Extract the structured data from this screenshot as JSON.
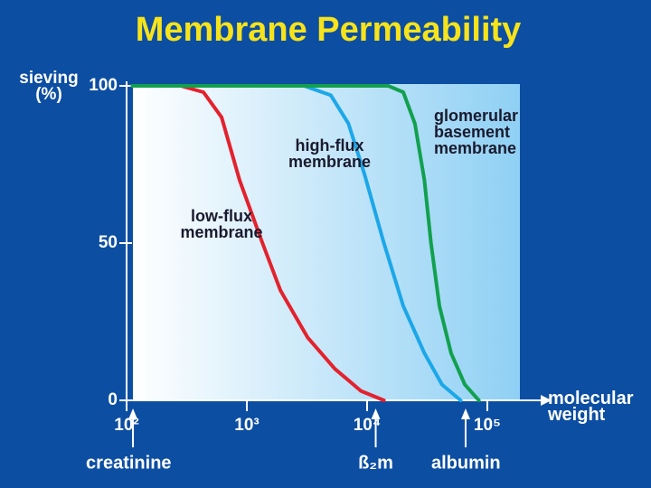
{
  "chart_data": {
    "type": "line",
    "title": "Membrane Permeability",
    "y_label": "sieving (%)",
    "x_label": "molecular weight",
    "log_x": true,
    "xlim": [
      100,
      200000
    ],
    "xticks": [
      {
        "value": 100,
        "label": "10²"
      },
      {
        "value": 1000,
        "label": "10³"
      },
      {
        "value": 10000,
        "label": "10⁴"
      },
      {
        "value": 100000,
        "label": "10⁵"
      }
    ],
    "ylim": [
      0,
      100
    ],
    "yticks": [
      0,
      50,
      100
    ],
    "series": [
      {
        "name": "low-flux membrane",
        "color": "#e3222e",
        "x": [
          112,
          282,
          436,
          617,
          871,
          1350,
          1900,
          3200,
          5400,
          8900,
          13800
        ],
        "values": [
          100,
          100,
          98,
          90,
          70,
          50,
          35,
          20,
          10,
          3,
          0
        ]
      },
      {
        "name": "high-flux membrane",
        "color": "#1ca7e8",
        "x": [
          112,
          3000,
          5000,
          7000,
          9500,
          13800,
          20000,
          30000,
          42000,
          60000
        ],
        "values": [
          100,
          100,
          97,
          88,
          72,
          50,
          30,
          15,
          5,
          0
        ]
      },
      {
        "name": "glomerular basement membrane",
        "color": "#12a04e",
        "x": [
          112,
          15000,
          20000,
          25000,
          30000,
          34000,
          40000,
          50000,
          65000,
          85000
        ],
        "values": [
          100,
          100,
          98,
          88,
          70,
          50,
          30,
          15,
          5,
          0
        ]
      }
    ],
    "annotations": [
      {
        "text": "creatinine",
        "x": 113
      },
      {
        "text": "ß₂m",
        "x": 11800
      },
      {
        "text": "albumin",
        "x": 66000
      }
    ]
  }
}
